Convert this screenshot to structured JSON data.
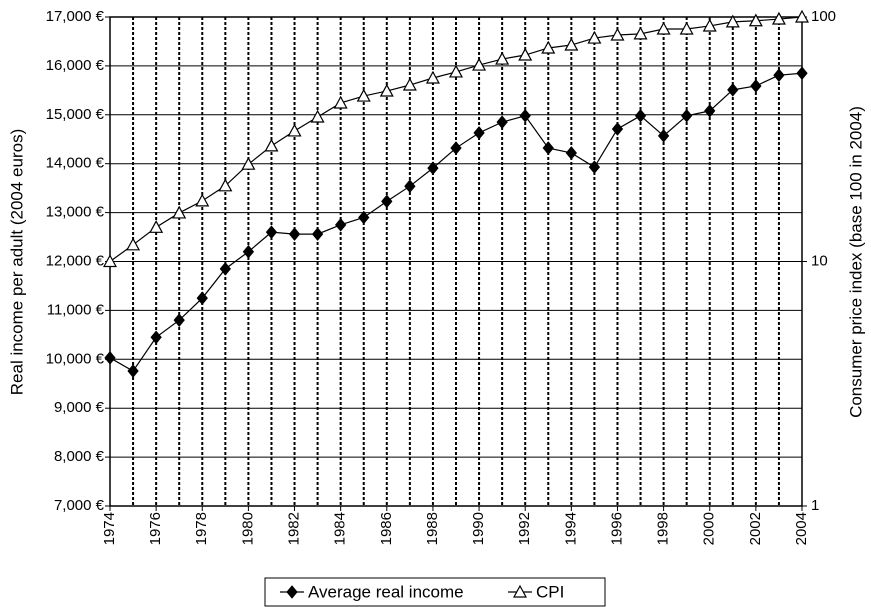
{
  "chart_data": {
    "type": "line",
    "ylabel": "Real income per adult (2004 euros)",
    "y2label": "Consumer price index (base 100 in 2004)",
    "x": [
      1974,
      1975,
      1976,
      1977,
      1978,
      1979,
      1980,
      1981,
      1982,
      1983,
      1984,
      1985,
      1986,
      1987,
      1988,
      1989,
      1990,
      1991,
      1992,
      1993,
      1994,
      1995,
      1996,
      1997,
      1998,
      1999,
      2000,
      2001,
      2002,
      2003,
      2004
    ],
    "xlim": [
      1974,
      2004
    ],
    "xticks": [
      1974,
      1976,
      1978,
      1980,
      1982,
      1984,
      1986,
      1988,
      1990,
      1992,
      1994,
      1996,
      1998,
      2000,
      2002,
      2004
    ],
    "ylim": [
      7000,
      17000
    ],
    "yticks": [
      {
        "value": 7000,
        "label": "7,000 €"
      },
      {
        "value": 8000,
        "label": "8,000 €"
      },
      {
        "value": 9000,
        "label": "9,000 €"
      },
      {
        "value": 10000,
        "label": "10,000 €"
      },
      {
        "value": 11000,
        "label": "11,000 €"
      },
      {
        "value": 12000,
        "label": "12,000 €"
      },
      {
        "value": 13000,
        "label": "13,000 €"
      },
      {
        "value": 14000,
        "label": "14,000 €"
      },
      {
        "value": 15000,
        "label": "15,000 €"
      },
      {
        "value": 16000,
        "label": "16,000 €"
      },
      {
        "value": 17000,
        "label": "17,000 €"
      }
    ],
    "y2lim": [
      1,
      100
    ],
    "y2ticks": [
      1,
      10,
      100
    ],
    "y2_log": true,
    "grid": true,
    "legend": "bottom",
    "series": [
      {
        "name": "Average real income",
        "color": "#000000",
        "marker": "diamond",
        "values": [
          10030,
          9760,
          10450,
          10800,
          11250,
          11850,
          12200,
          12600,
          12560,
          12560,
          12750,
          12900,
          13230,
          13540,
          13910,
          14320,
          14630,
          14850,
          14980,
          14320,
          14220,
          13930,
          14710,
          14980,
          14570,
          14980,
          15080,
          15510,
          15590,
          15810,
          15850
        ]
      },
      {
        "name": "CPI",
        "color": "#000000",
        "marker": "triangle",
        "axis": "y2",
        "values": [
          10,
          11.7,
          13.8,
          15.8,
          17.7,
          20.4,
          25.0,
          29.7,
          34.2,
          39.0,
          44.5,
          47.5,
          49.8,
          52.7,
          56.3,
          59.6,
          63.6,
          67.3,
          69.9,
          74.7,
          76.8,
          82.0,
          84.4,
          85.3,
          89.3,
          89.3,
          91.9,
          95.5,
          96.5,
          98.1,
          100
        ]
      }
    ]
  }
}
